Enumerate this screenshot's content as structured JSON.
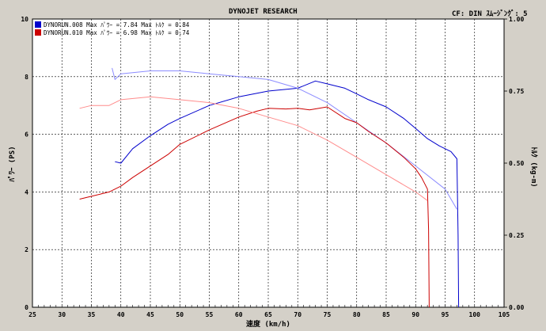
{
  "header": {
    "title": "DYNOJET  RESEARCH",
    "cf_label": "CF: DIN  ｽﾑｰｼﾞﾝｸﾞ: 5"
  },
  "chart_data": {
    "type": "line",
    "xlabel": "速度 (km/h)",
    "ylabel_left": "ﾊﾟﾜｰ (PS)",
    "ylabel_right": "ﾄﾙｸ (kg-m)",
    "xlim": [
      25,
      105
    ],
    "ylim_left": [
      0,
      10
    ],
    "ylim_right": [
      0,
      1.0
    ],
    "x_ticks": [
      25,
      30,
      35,
      40,
      45,
      50,
      55,
      60,
      65,
      70,
      75,
      80,
      85,
      90,
      95,
      100,
      105
    ],
    "y_ticks_left": [
      0,
      2,
      4,
      6,
      8,
      10
    ],
    "y_ticks_right": [
      "0.00",
      "0.25",
      "0.50",
      "0.75",
      "1.00"
    ],
    "grid": true,
    "legend": [
      {
        "name": "DYNORUN.008",
        "text": "DYNORUN.008  Max ﾊﾟﾜｰ = 7.84   Max ﾄﾙｸ = 0.84",
        "color": "#0000cc"
      },
      {
        "name": "DYNORUN.010",
        "text": "DYNORUN.010  Max ﾊﾟﾜｰ = 6.98   Max ﾄﾙｸ = 0.74",
        "color": "#cc0000"
      }
    ],
    "series": [
      {
        "name": "DYNORUN.008",
        "quantity": "power",
        "axis": "left",
        "color": "#0000cc",
        "x": [
          39,
          40,
          42,
          45,
          48,
          50,
          55,
          60,
          65,
          70,
          73,
          75,
          78,
          80,
          82,
          85,
          88,
          90,
          92,
          94,
          96,
          97,
          97.2,
          97.3
        ],
        "y": [
          5.05,
          5.0,
          5.5,
          5.95,
          6.35,
          6.55,
          7.0,
          7.3,
          7.5,
          7.6,
          7.85,
          7.75,
          7.6,
          7.4,
          7.2,
          6.95,
          6.55,
          6.2,
          5.85,
          5.6,
          5.4,
          5.15,
          2.5,
          0.0
        ]
      },
      {
        "name": "DYNORUN.008",
        "quantity": "torque",
        "axis": "right",
        "color": "#8c8cff",
        "x": [
          38.5,
          39,
          40,
          45,
          50,
          55,
          60,
          65,
          70,
          75,
          80,
          85,
          90,
          95,
          97
        ],
        "y": [
          0.83,
          0.79,
          0.81,
          0.82,
          0.82,
          0.81,
          0.8,
          0.79,
          0.76,
          0.71,
          0.64,
          0.57,
          0.49,
          0.41,
          0.34
        ]
      },
      {
        "name": "DYNORUN.010",
        "quantity": "power",
        "axis": "left",
        "color": "#cc0000",
        "x": [
          40,
          42,
          45,
          48,
          50,
          55,
          60,
          63,
          65,
          68,
          70,
          72,
          75,
          78,
          80,
          82,
          85,
          88,
          90,
          91,
          92,
          92.2,
          92.3
        ],
        "y": [
          4.2,
          4.5,
          4.9,
          5.3,
          5.65,
          6.15,
          6.6,
          6.8,
          6.9,
          6.88,
          6.9,
          6.85,
          6.95,
          6.55,
          6.4,
          6.1,
          5.7,
          5.2,
          4.8,
          4.5,
          4.1,
          2.7,
          0.0
        ]
      },
      {
        "name": "DYNORUN.010",
        "quantity": "torque",
        "axis": "right",
        "color": "#ff8c8c",
        "x": [
          33,
          35,
          38,
          40,
          45,
          50,
          55,
          60,
          65,
          70,
          75,
          80,
          85,
          90,
          92
        ],
        "y": [
          0.69,
          0.7,
          0.7,
          0.72,
          0.73,
          0.72,
          0.71,
          0.69,
          0.66,
          0.63,
          0.58,
          0.52,
          0.46,
          0.4,
          0.37
        ]
      },
      {
        "name": "DYNORUN.010",
        "quantity": "power_lowrpm",
        "axis": "left",
        "color": "#cc0000",
        "x": [
          33,
          35,
          38,
          40
        ],
        "y": [
          3.75,
          3.85,
          4.0,
          4.2
        ]
      }
    ]
  }
}
